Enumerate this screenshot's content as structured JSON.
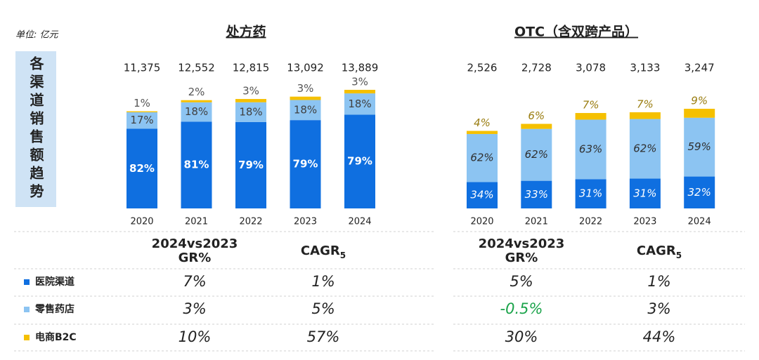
{
  "unit": "单位: 亿元",
  "side_label": "各渠道销售额趋势",
  "chart_data": [
    {
      "type": "stacked_bar",
      "title": "处方药",
      "italic": false,
      "categories": [
        "2020",
        "2021",
        "2022",
        "2023",
        "2024"
      ],
      "totals": {
        "values": [
          11375,
          12552,
          12815,
          13092,
          13889
        ],
        "value_labels": [
          "11,375",
          "12,552",
          "12,815",
          "13,092",
          "13,889"
        ]
      },
      "series": [
        {
          "name": "医院渠道",
          "color": "#0f6fe0",
          "label_color": "#ffffff",
          "values": [
            82,
            81,
            79,
            79,
            79
          ],
          "value_labels": [
            "82%",
            "81%",
            "79%",
            "79%",
            "79%"
          ]
        },
        {
          "name": "零售药店",
          "color": "#8cc4f2",
          "label_color": "#404040",
          "values": [
            17,
            18,
            18,
            18,
            18
          ],
          "value_labels": [
            "17%",
            "18%",
            "18%",
            "18%",
            "18%"
          ]
        },
        {
          "name": "电商B2C",
          "color": "#f5c000",
          "label_color": "#555555",
          "values": [
            1,
            2,
            3,
            3,
            3
          ],
          "value_labels": [
            "1%",
            "2%",
            "3%",
            "3%",
            "3%"
          ]
        }
      ],
      "table": {
        "headers": [
          {
            "lines": [
              "2024vs2023",
              "GR%"
            ]
          },
          {
            "text": "CAGR",
            "sub": "5"
          }
        ],
        "rows": [
          [
            "7%",
            "1%"
          ],
          [
            "3%",
            "5%"
          ],
          [
            "10%",
            "57%"
          ]
        ]
      }
    },
    {
      "type": "stacked_bar",
      "title": "OTC（含双跨产品）",
      "italic": true,
      "categories": [
        "2020",
        "2021",
        "2022",
        "2023",
        "2024"
      ],
      "totals": {
        "values": [
          2526,
          2728,
          3078,
          3133,
          3247
        ],
        "value_labels": [
          "2,526",
          "2,728",
          "3,078",
          "3,133",
          "3,247"
        ]
      },
      "series": [
        {
          "color": "#0f6fe0",
          "label_color": "#ffffff",
          "values": [
            34,
            33,
            31,
            31,
            32
          ],
          "value_labels": [
            "34%",
            "33%",
            "31%",
            "31%",
            "32%"
          ]
        },
        {
          "color": "#8cc4f2",
          "label_color": "#303030",
          "values": [
            62,
            62,
            63,
            62,
            59
          ],
          "value_labels": [
            "62%",
            "62%",
            "63%",
            "62%",
            "59%"
          ]
        },
        {
          "color": "#f5c000",
          "label_color": "#9a7d10",
          "values": [
            4,
            6,
            7,
            7,
            9
          ],
          "value_labels": [
            "4%",
            "6%",
            "7%",
            "7%",
            "9%"
          ]
        }
      ],
      "table": {
        "headers": [
          {
            "lines": [
              "2024vs2023",
              "GR%"
            ]
          },
          {
            "text": "CAGR",
            "sub": "5"
          }
        ],
        "rows": [
          [
            "5%",
            "1%"
          ],
          [
            {
              "text": "-0.5%",
              "color": "#1aa34a"
            },
            "3%"
          ],
          [
            "30%",
            "44%"
          ]
        ]
      }
    }
  ]
}
